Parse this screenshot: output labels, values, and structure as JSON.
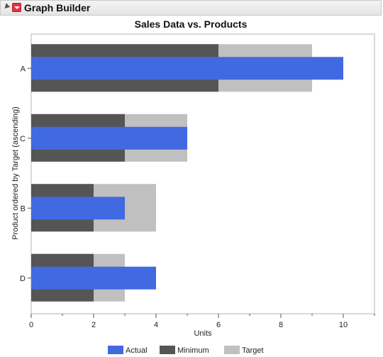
{
  "header": {
    "title": "Graph Builder"
  },
  "chart_data": {
    "type": "bar",
    "orientation": "horizontal",
    "title": "Sales Data vs. Products",
    "xlabel": "Units",
    "ylabel": "Product ordered by Target (ascending)",
    "xlim": [
      0,
      11
    ],
    "x_ticks": [
      0,
      2,
      4,
      6,
      8,
      10
    ],
    "categories": [
      "A",
      "C",
      "B",
      "D"
    ],
    "series": [
      {
        "name": "Target",
        "values": [
          9,
          5,
          4,
          3
        ],
        "color": "#c0c0c0"
      },
      {
        "name": "Minimum",
        "values": [
          6,
          3,
          2,
          2
        ],
        "color": "#555555"
      },
      {
        "name": "Actual",
        "values": [
          10,
          5,
          3,
          4
        ],
        "color": "#4169e1"
      }
    ],
    "legend": {
      "position": "bottom",
      "entries": [
        "Actual",
        "Minimum",
        "Target"
      ]
    },
    "grid": false
  }
}
